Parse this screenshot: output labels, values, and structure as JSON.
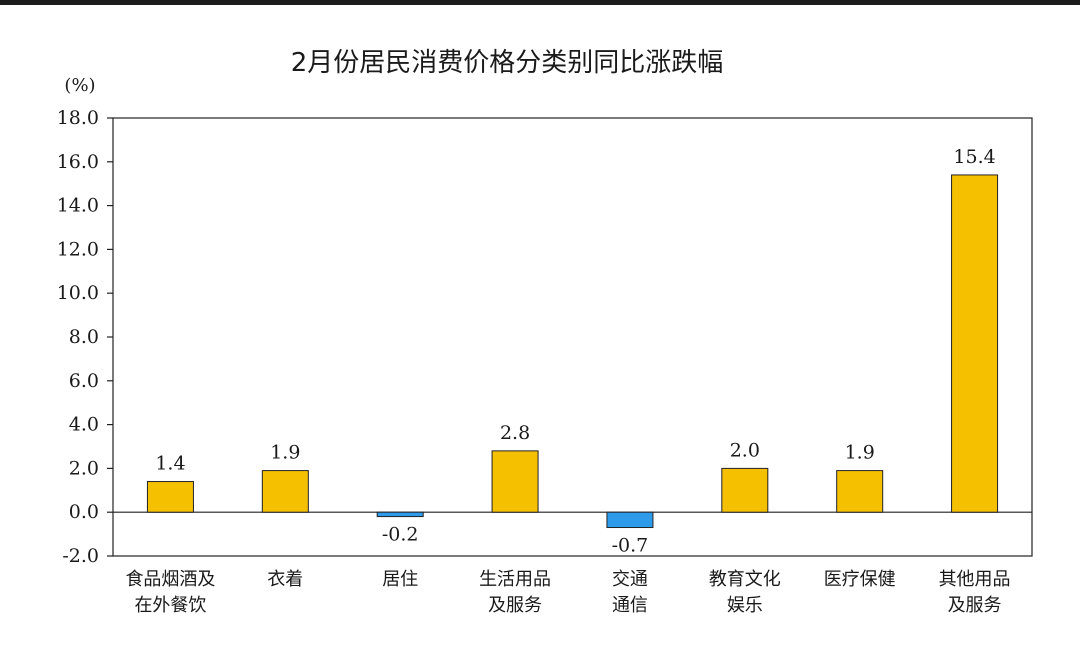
{
  "chart_data": {
    "type": "bar",
    "title": "2月份居民消费价格分类别同比涨跌幅",
    "ylabel": "(%)",
    "xlabel": "",
    "ylim": [
      -2.0,
      18.0
    ],
    "yticks": [
      "18.0",
      "16.0",
      "14.0",
      "12.0",
      "10.0",
      "8.0",
      "6.0",
      "4.0",
      "2.0",
      "0.0",
      "-2.0"
    ],
    "categories": [
      [
        "食品烟酒及",
        "在外餐饮"
      ],
      [
        "衣着"
      ],
      [
        "居住"
      ],
      [
        "生活用品",
        "及服务"
      ],
      [
        "交通",
        "通信"
      ],
      [
        "教育文化",
        "娱乐"
      ],
      [
        "医疗保健"
      ],
      [
        "其他用品",
        "及服务"
      ]
    ],
    "values": [
      1.4,
      1.9,
      -0.2,
      2.8,
      -0.7,
      2.0,
      1.9,
      15.4
    ],
    "value_labels": [
      "1.4",
      "1.9",
      "-0.2",
      "2.8",
      "-0.7",
      "2.0",
      "1.9",
      "15.4"
    ],
    "colors": {
      "positive": "#F5C000",
      "negative": "#2E9BEA",
      "outline": "#222222"
    },
    "grid": false,
    "legend": "none"
  }
}
